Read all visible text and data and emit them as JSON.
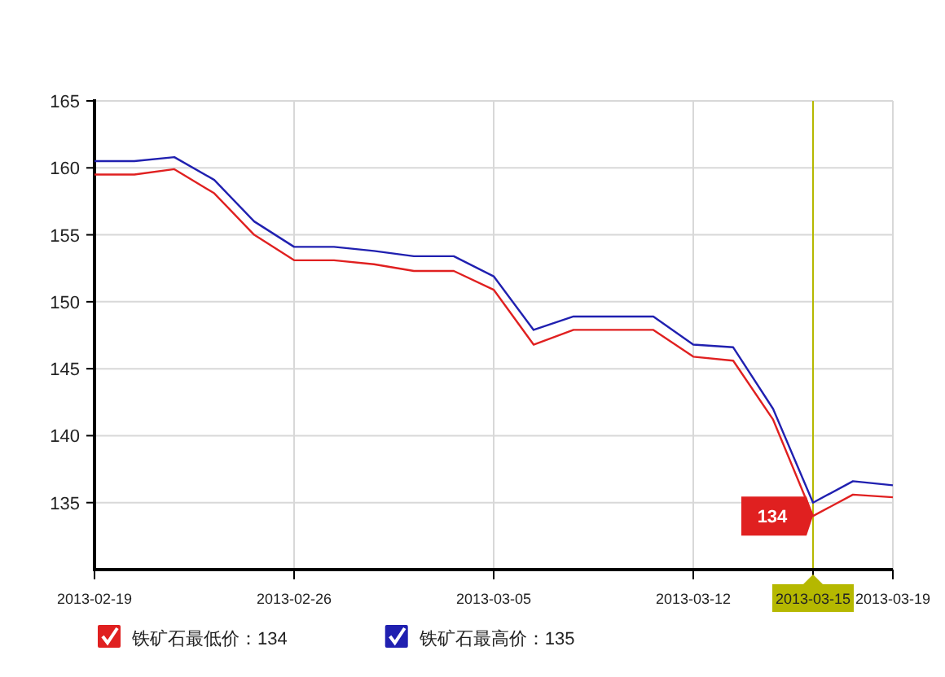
{
  "chart_data": {
    "type": "line",
    "categories": [
      "2013-02-19",
      null,
      null,
      null,
      null,
      "2013-02-26",
      null,
      null,
      null,
      null,
      "2013-03-05",
      null,
      null,
      null,
      null,
      "2013-03-12",
      null,
      null,
      "2013-03-15",
      null,
      "2013-03-19"
    ],
    "series": [
      {
        "name": "铁矿石最低价：134",
        "color": "#e02020",
        "values": [
          159.5,
          159.5,
          159.9,
          158.1,
          155.0,
          153.1,
          153.1,
          152.8,
          152.3,
          152.3,
          150.9,
          146.8,
          147.9,
          147.9,
          147.9,
          145.9,
          145.6,
          141.2,
          134,
          135.6,
          135.4
        ],
        "value_labels": [
          null,
          null,
          null,
          null,
          null,
          null,
          null,
          null,
          null,
          null,
          null,
          null,
          null,
          null,
          null,
          null,
          null,
          null,
          "134",
          null,
          null
        ]
      },
      {
        "name": "铁矿石最高价：135",
        "color": "#2020b0",
        "values": [
          160.5,
          160.5,
          160.8,
          159.1,
          156.0,
          154.1,
          154.1,
          153.8,
          153.4,
          153.4,
          151.9,
          147.9,
          148.9,
          148.9,
          148.9,
          146.8,
          146.6,
          142.0,
          135,
          136.6,
          136.3
        ]
      }
    ],
    "ylim": [
      130,
      165
    ],
    "yticks": [
      135,
      140,
      145,
      150,
      155,
      160,
      165
    ],
    "ref_lines": [
      {
        "axis": "x",
        "value": "2013-03-15",
        "color": "#b5b800"
      }
    ],
    "grid": true,
    "legend": "bottom left",
    "marker": "none",
    "line_style": "solid"
  }
}
